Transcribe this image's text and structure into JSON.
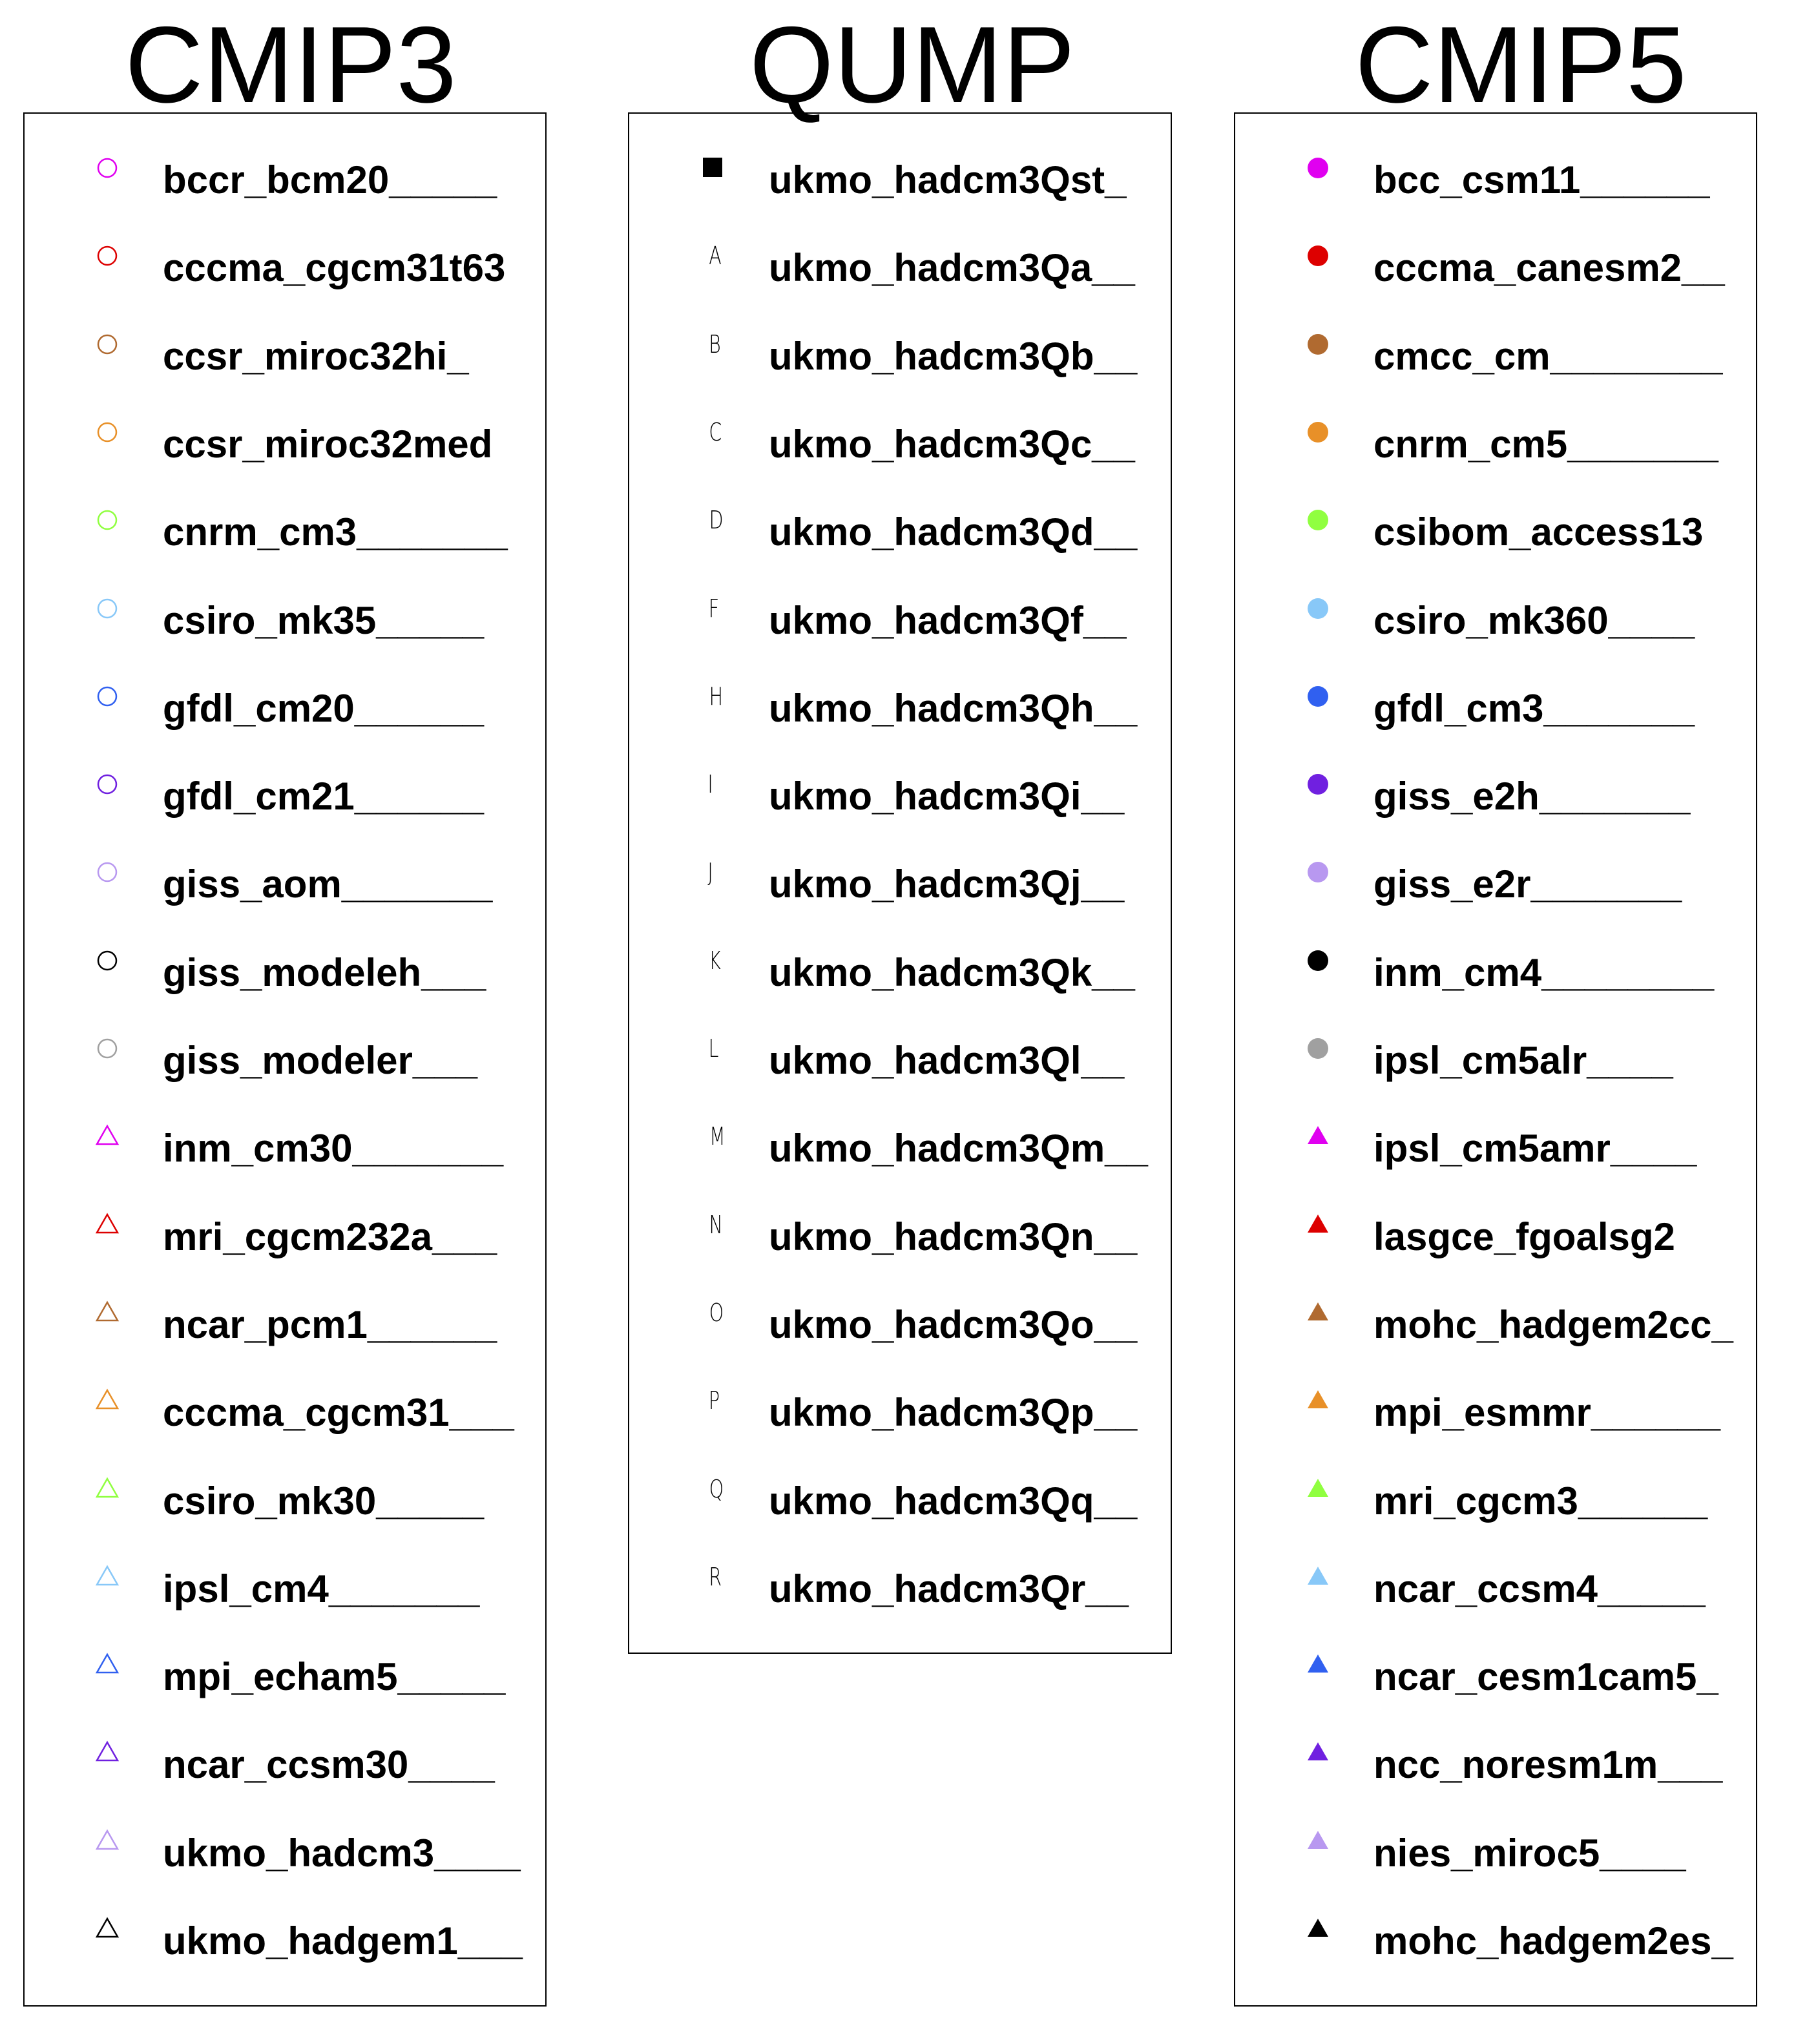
{
  "panels": [
    {
      "title": "CMIP3",
      "items": [
        {
          "label": "bccr_bcm20_____",
          "marker": "open-circle",
          "color": "#e000f0"
        },
        {
          "label": "cccma_cgcm31t63",
          "marker": "open-circle",
          "color": "#dd0000"
        },
        {
          "label": "ccsr_miroc32hi_",
          "marker": "open-circle",
          "color": "#b06a30"
        },
        {
          "label": "ccsr_miroc32med",
          "marker": "open-circle",
          "color": "#e89028"
        },
        {
          "label": "cnrm_cm3_______",
          "marker": "open-circle",
          "color": "#90ff40"
        },
        {
          "label": "csiro_mk35_____",
          "marker": "open-circle",
          "color": "#88c8f8"
        },
        {
          "label": "gfdl_cm20______",
          "marker": "open-circle",
          "color": "#3060f0"
        },
        {
          "label": "gfdl_cm21______",
          "marker": "open-circle",
          "color": "#7020e0"
        },
        {
          "label": "giss_aom_______",
          "marker": "open-circle",
          "color": "#b898f0"
        },
        {
          "label": "giss_modeleh___",
          "marker": "open-circle",
          "color": "#000000"
        },
        {
          "label": "giss_modeler___",
          "marker": "open-circle",
          "color": "#a0a0a0"
        },
        {
          "label": "inm_cm30_______",
          "marker": "open-triangle",
          "color": "#e000f0"
        },
        {
          "label": "mri_cgcm232a___",
          "marker": "open-triangle",
          "color": "#dd0000"
        },
        {
          "label": "ncar_pcm1______",
          "marker": "open-triangle",
          "color": "#b06a30"
        },
        {
          "label": "cccma_cgcm31___",
          "marker": "open-triangle",
          "color": "#e89028"
        },
        {
          "label": "csiro_mk30_____",
          "marker": "open-triangle",
          "color": "#90ff40"
        },
        {
          "label": "ipsl_cm4_______",
          "marker": "open-triangle",
          "color": "#88c8f8"
        },
        {
          "label": "mpi_echam5_____",
          "marker": "open-triangle",
          "color": "#3060f0"
        },
        {
          "label": "ncar_ccsm30____",
          "marker": "open-triangle",
          "color": "#7020e0"
        },
        {
          "label": "ukmo_hadcm3____",
          "marker": "open-triangle",
          "color": "#b898f0"
        },
        {
          "label": "ukmo_hadgem1___",
          "marker": "open-triangle",
          "color": "#000000"
        }
      ]
    },
    {
      "title": "QUMP",
      "items": [
        {
          "label": "ukmo_hadcm3Qst_",
          "marker": "filled-square",
          "color": "#000000"
        },
        {
          "label": "ukmo_hadcm3Qa__",
          "marker": "letter",
          "symbol": "A",
          "color": "#000000"
        },
        {
          "label": "ukmo_hadcm3Qb__",
          "marker": "letter",
          "symbol": "B",
          "color": "#000000"
        },
        {
          "label": "ukmo_hadcm3Qc__",
          "marker": "letter",
          "symbol": "C",
          "color": "#000000"
        },
        {
          "label": "ukmo_hadcm3Qd__",
          "marker": "letter",
          "symbol": "D",
          "color": "#000000"
        },
        {
          "label": "ukmo_hadcm3Qf__",
          "marker": "letter",
          "symbol": "F",
          "color": "#000000"
        },
        {
          "label": "ukmo_hadcm3Qh__",
          "marker": "letter",
          "symbol": "H",
          "color": "#000000"
        },
        {
          "label": "ukmo_hadcm3Qi__",
          "marker": "letter",
          "symbol": "I",
          "color": "#000000"
        },
        {
          "label": "ukmo_hadcm3Qj__",
          "marker": "letter",
          "symbol": "J",
          "color": "#000000"
        },
        {
          "label": "ukmo_hadcm3Qk__",
          "marker": "letter",
          "symbol": "K",
          "color": "#000000"
        },
        {
          "label": "ukmo_hadcm3Ql__",
          "marker": "letter",
          "symbol": "L",
          "color": "#000000"
        },
        {
          "label": "ukmo_hadcm3Qm__",
          "marker": "letter",
          "symbol": "M",
          "color": "#000000"
        },
        {
          "label": "ukmo_hadcm3Qn__",
          "marker": "letter",
          "symbol": "N",
          "color": "#000000"
        },
        {
          "label": "ukmo_hadcm3Qo__",
          "marker": "letter",
          "symbol": "O",
          "color": "#000000"
        },
        {
          "label": "ukmo_hadcm3Qp__",
          "marker": "letter",
          "symbol": "P",
          "color": "#000000"
        },
        {
          "label": "ukmo_hadcm3Qq__",
          "marker": "letter",
          "symbol": "Q",
          "color": "#000000"
        },
        {
          "label": "ukmo_hadcm3Qr__",
          "marker": "letter",
          "symbol": "R",
          "color": "#000000"
        }
      ]
    },
    {
      "title": "CMIP5",
      "items": [
        {
          "label": "bcc_csm11______",
          "marker": "filled-circle",
          "color": "#e000f0"
        },
        {
          "label": "cccma_canesm2__",
          "marker": "filled-circle",
          "color": "#dd0000"
        },
        {
          "label": "cmcc_cm________",
          "marker": "filled-circle",
          "color": "#b06a30"
        },
        {
          "label": "cnrm_cm5_______",
          "marker": "filled-circle",
          "color": "#e89028"
        },
        {
          "label": "csibom_access13",
          "marker": "filled-circle",
          "color": "#90ff40"
        },
        {
          "label": "csiro_mk360____",
          "marker": "filled-circle",
          "color": "#88c8f8"
        },
        {
          "label": "gfdl_cm3_______",
          "marker": "filled-circle",
          "color": "#3060f0"
        },
        {
          "label": "giss_e2h_______",
          "marker": "filled-circle",
          "color": "#7020e0"
        },
        {
          "label": "giss_e2r_______",
          "marker": "filled-circle",
          "color": "#b898f0"
        },
        {
          "label": "inm_cm4________",
          "marker": "filled-circle",
          "color": "#000000"
        },
        {
          "label": "ipsl_cm5alr____",
          "marker": "filled-circle",
          "color": "#a0a0a0"
        },
        {
          "label": "ipsl_cm5amr____",
          "marker": "filled-triangle",
          "color": "#e000f0"
        },
        {
          "label": "lasgce_fgoalsg2",
          "marker": "filled-triangle",
          "color": "#dd0000"
        },
        {
          "label": "mohc_hadgem2cc_",
          "marker": "filled-triangle",
          "color": "#b06a30"
        },
        {
          "label": "mpi_esmmr______",
          "marker": "filled-triangle",
          "color": "#e89028"
        },
        {
          "label": "mri_cgcm3______",
          "marker": "filled-triangle",
          "color": "#90ff40"
        },
        {
          "label": "ncar_ccsm4_____",
          "marker": "filled-triangle",
          "color": "#88c8f8"
        },
        {
          "label": "ncar_cesm1cam5_",
          "marker": "filled-triangle",
          "color": "#3060f0"
        },
        {
          "label": "ncc_noresm1m___",
          "marker": "filled-triangle",
          "color": "#7020e0"
        },
        {
          "label": "nies_miroc5____",
          "marker": "filled-triangle",
          "color": "#b898f0"
        },
        {
          "label": "mohc_hadgem2es_",
          "marker": "filled-triangle",
          "color": "#000000"
        }
      ]
    }
  ]
}
